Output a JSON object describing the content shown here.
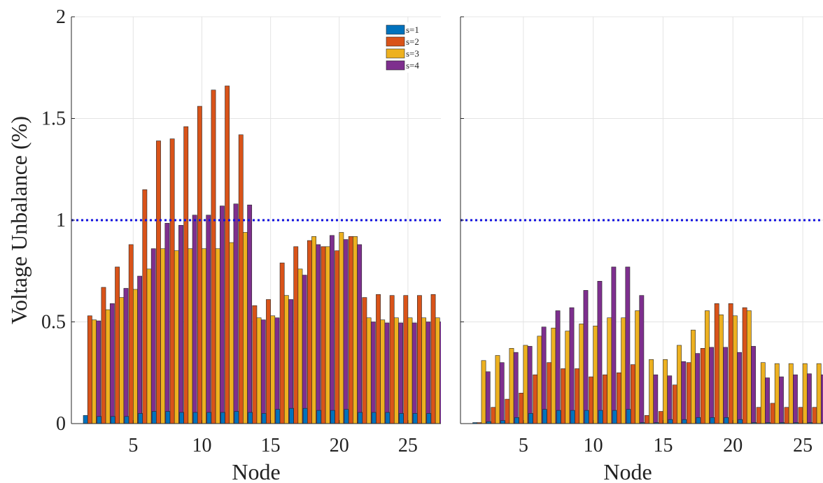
{
  "chart_data": [
    {
      "type": "bar",
      "ylabel": "Voltage Unbalance (%)",
      "xlabel": "Node",
      "ylim": [
        0,
        2
      ],
      "yticks": [
        0,
        0.5,
        1,
        1.5,
        2
      ],
      "ytick_labels": [
        "0",
        "0.5",
        "1",
        "1.5",
        "2"
      ],
      "xlim": [
        0.5,
        27.4
      ],
      "xticks": [
        5,
        10,
        15,
        20,
        25
      ],
      "xtick_labels": [
        "5",
        "10",
        "15",
        "20",
        "25"
      ],
      "x": [
        2,
        3,
        4,
        5,
        6,
        7,
        8,
        9,
        10,
        11,
        12,
        13,
        14,
        15,
        16,
        17,
        18,
        19,
        20,
        21,
        22,
        23,
        24,
        25,
        26,
        27
      ],
      "reference_line": 1,
      "grid": true,
      "legend_position": "top-right",
      "series": [
        {
          "name": "s=1",
          "color": "#0072bd",
          "values": [
            0.04,
            0.035,
            0.035,
            0.035,
            0.05,
            0.06,
            0.06,
            0.055,
            0.055,
            0.055,
            0.055,
            0.06,
            0.055,
            0.05,
            0.07,
            0.075,
            0.075,
            0.065,
            0.065,
            0.07,
            0.055,
            0.055,
            0.055,
            0.05,
            0.05,
            0.05
          ]
        },
        {
          "name": "s=2",
          "color": "#d95319",
          "values": [
            0.53,
            0.67,
            0.77,
            0.88,
            1.15,
            1.39,
            1.4,
            1.46,
            1.56,
            1.64,
            1.66,
            1.42,
            0.58,
            0.61,
            0.79,
            0.87,
            0.9,
            0.87,
            0.85,
            0.92,
            0.62,
            0.635,
            0.63,
            0.63,
            0.63,
            0.635
          ]
        },
        {
          "name": "s=3",
          "color": "#edb120",
          "values": [
            0.51,
            0.56,
            0.62,
            0.66,
            0.76,
            0.86,
            0.85,
            0.86,
            0.86,
            0.86,
            0.89,
            0.94,
            0.52,
            0.53,
            0.63,
            0.76,
            0.92,
            0.87,
            0.94,
            0.92,
            0.52,
            0.51,
            0.52,
            0.52,
            0.52,
            0.52
          ]
        },
        {
          "name": "s=4",
          "color": "#7e2f8e",
          "values": [
            0.505,
            0.59,
            0.665,
            0.725,
            0.86,
            0.985,
            0.975,
            1.025,
            1.025,
            1.07,
            1.08,
            1.075,
            0.51,
            0.52,
            0.61,
            0.73,
            0.88,
            0.925,
            0.905,
            0.88,
            0.5,
            0.495,
            0.495,
            0.495,
            0.5,
            0.5
          ]
        }
      ]
    },
    {
      "type": "bar",
      "ylabel": "",
      "xlabel": "Node",
      "ylim": [
        0,
        2
      ],
      "yticks": [
        0,
        0.5,
        1,
        1.5,
        2
      ],
      "xlim": [
        0.5,
        27.4
      ],
      "xticks": [
        5,
        10,
        15,
        20,
        25
      ],
      "xtick_labels": [
        "5",
        "10",
        "15",
        "20",
        "25"
      ],
      "x": [
        2,
        3,
        4,
        5,
        6,
        7,
        8,
        9,
        10,
        11,
        12,
        13,
        14,
        15,
        16,
        17,
        18,
        19,
        20,
        21,
        22,
        23,
        24,
        25,
        26,
        27
      ],
      "reference_line": 1,
      "grid": true,
      "series": [
        {
          "name": "s=1",
          "color": "#0072bd",
          "values": [
            0.005,
            0.01,
            0.015,
            0.03,
            0.05,
            0.07,
            0.065,
            0.065,
            0.065,
            0.065,
            0.065,
            0.07,
            0.005,
            0.005,
            0.02,
            0.02,
            0.03,
            0.03,
            0.03,
            0.02,
            0.005,
            0.005,
            0.005,
            0.005,
            0.005,
            0.005
          ]
        },
        {
          "name": "s=2",
          "color": "#d95319",
          "values": [
            0.005,
            0.08,
            0.12,
            0.15,
            0.24,
            0.3,
            0.27,
            0.27,
            0.23,
            0.24,
            0.25,
            0.29,
            0.04,
            0.06,
            0.19,
            0.3,
            0.37,
            0.59,
            0.59,
            0.57,
            0.08,
            0.1,
            0.08,
            0.08,
            0.08,
            0.08
          ]
        },
        {
          "name": "s=3",
          "color": "#edb120",
          "values": [
            0.31,
            0.335,
            0.37,
            0.385,
            0.43,
            0.47,
            0.455,
            0.49,
            0.48,
            0.52,
            0.52,
            0.555,
            0.315,
            0.315,
            0.385,
            0.46,
            0.555,
            0.535,
            0.53,
            0.555,
            0.3,
            0.295,
            0.295,
            0.295,
            0.295,
            0.295
          ]
        },
        {
          "name": "s=4",
          "color": "#7e2f8e",
          "values": [
            0.255,
            0.3,
            0.35,
            0.38,
            0.475,
            0.555,
            0.57,
            0.655,
            0.7,
            0.77,
            0.77,
            0.63,
            0.24,
            0.235,
            0.305,
            0.345,
            0.375,
            0.375,
            0.35,
            0.38,
            0.225,
            0.23,
            0.24,
            0.245,
            0.24,
            0.245
          ]
        }
      ]
    }
  ]
}
